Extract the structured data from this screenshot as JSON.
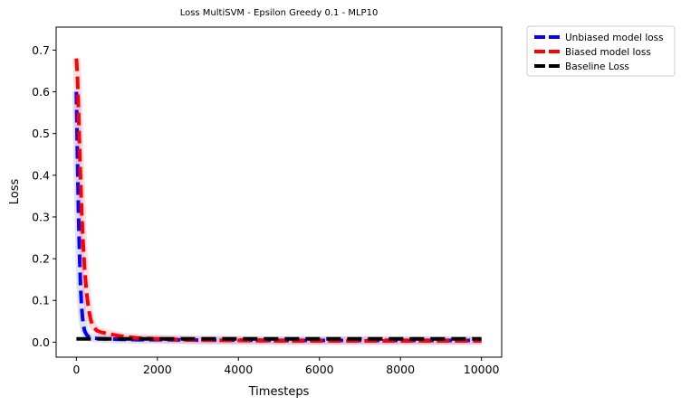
{
  "chart_data": {
    "type": "line",
    "title": "Loss MultiSVM - Epsilon Greedy 0.1 - MLP10",
    "xlabel": "Timesteps",
    "ylabel": "Loss",
    "xlim": [
      -500,
      10500
    ],
    "ylim": [
      -0.036,
      0.755
    ],
    "xticks": [
      0,
      2000,
      4000,
      6000,
      8000,
      10000
    ],
    "yticks": [
      0.0,
      0.1,
      0.2,
      0.3,
      0.4,
      0.5,
      0.6,
      0.7
    ],
    "xtick_labels": [
      "0",
      "2000",
      "4000",
      "6000",
      "8000",
      "10000"
    ],
    "ytick_labels": [
      "0.0",
      "0.1",
      "0.2",
      "0.3",
      "0.4",
      "0.5",
      "0.6",
      "0.7"
    ],
    "grid": false,
    "legend_position": "outside-top-right",
    "series": [
      {
        "name": "Unbiased model loss",
        "color": "#0000ff",
        "style": "dashed",
        "x": [
          0,
          25,
          50,
          75,
          100,
          125,
          150,
          175,
          200,
          250,
          300,
          400,
          500,
          700,
          1000,
          1500,
          2000,
          3000,
          4000,
          5000,
          6000,
          7000,
          8000,
          9000,
          10000
        ],
        "y": [
          0.6,
          0.45,
          0.32,
          0.22,
          0.14,
          0.09,
          0.06,
          0.04,
          0.028,
          0.018,
          0.013,
          0.01,
          0.009,
          0.008,
          0.007,
          0.006,
          0.006,
          0.005,
          0.005,
          0.004,
          0.004,
          0.004,
          0.004,
          0.004,
          0.004
        ]
      },
      {
        "name": "Biased model loss",
        "color": "#ff0000",
        "style": "dashed",
        "x": [
          0,
          25,
          50,
          75,
          100,
          125,
          150,
          175,
          200,
          250,
          300,
          350,
          400,
          500,
          600,
          700,
          800,
          1000,
          1200,
          1500,
          2000,
          3000,
          4000,
          5000,
          6000,
          7000,
          8000,
          9000,
          10000
        ],
        "y": [
          0.68,
          0.64,
          0.56,
          0.48,
          0.4,
          0.33,
          0.27,
          0.22,
          0.18,
          0.12,
          0.08,
          0.055,
          0.04,
          0.028,
          0.024,
          0.022,
          0.02,
          0.016,
          0.013,
          0.01,
          0.008,
          0.005,
          0.004,
          0.003,
          0.003,
          0.003,
          0.003,
          0.003,
          0.003
        ]
      },
      {
        "name": "Baseline Loss",
        "color": "#000000",
        "style": "dashed",
        "x": [
          0,
          10000
        ],
        "y": [
          0.008,
          0.008
        ]
      }
    ]
  }
}
